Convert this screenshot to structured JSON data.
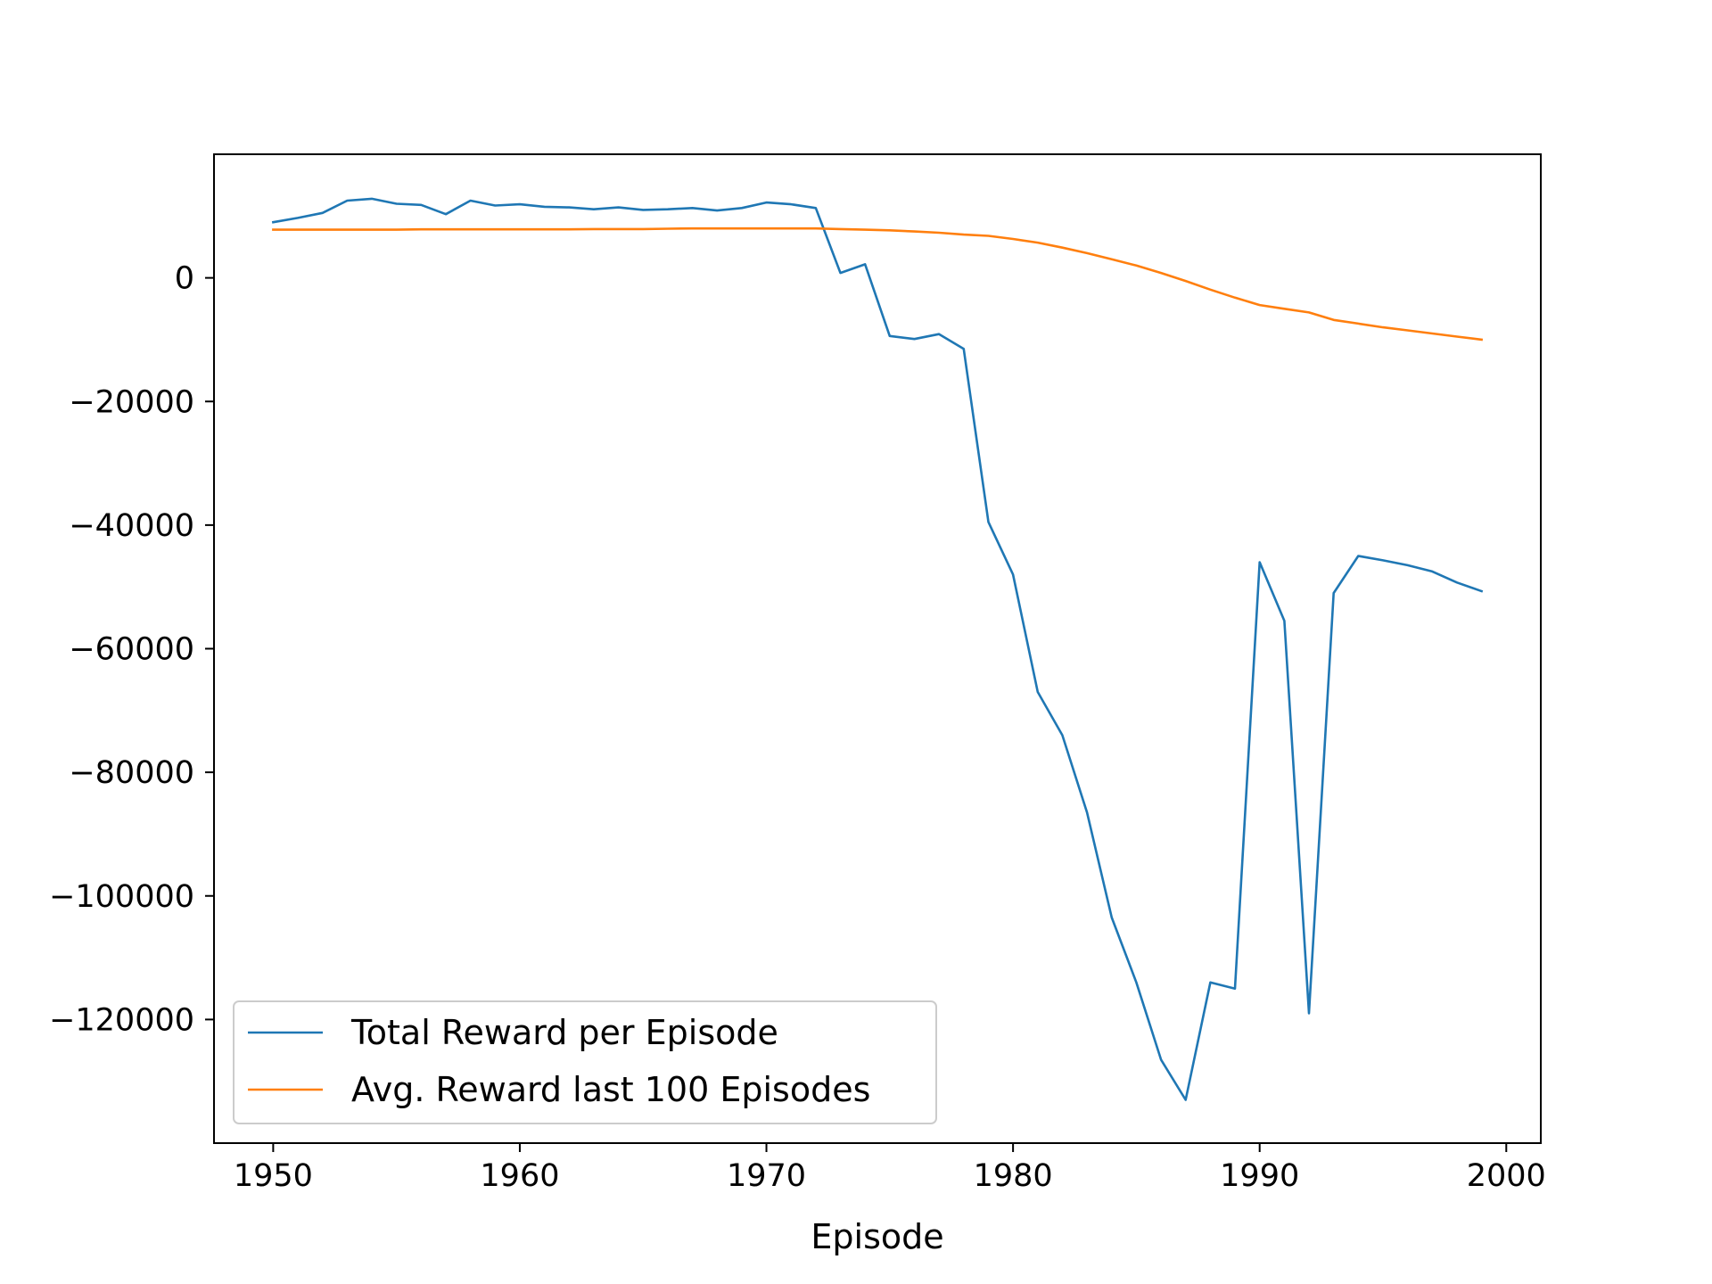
{
  "chart_data": {
    "type": "line",
    "title": "",
    "xlabel": "Episode",
    "ylabel": "",
    "xlim": [
      1947.6,
      2001.4
    ],
    "ylim": [
      -140000,
      20000
    ],
    "x_ticks": [
      1950,
      1960,
      1970,
      1980,
      1990,
      2000
    ],
    "y_ticks": [
      0,
      -20000,
      -40000,
      -60000,
      -80000,
      -100000,
      -120000
    ],
    "x_tick_labels": [
      "1950",
      "1960",
      "1970",
      "1980",
      "1990",
      "2000"
    ],
    "y_tick_labels": [
      "0",
      "−20000",
      "−40000",
      "−60000",
      "−80000",
      "−100000",
      "−120000"
    ],
    "grid": false,
    "legend_position": "lower-left",
    "x": [
      1950,
      1951,
      1952,
      1953,
      1954,
      1955,
      1956,
      1957,
      1958,
      1959,
      1960,
      1961,
      1962,
      1963,
      1964,
      1965,
      1966,
      1967,
      1968,
      1969,
      1970,
      1971,
      1972,
      1973,
      1974,
      1975,
      1976,
      1977,
      1978,
      1979,
      1980,
      1981,
      1982,
      1983,
      1984,
      1985,
      1986,
      1987,
      1988,
      1989,
      1990,
      1991,
      1992,
      1993,
      1994,
      1995,
      1996,
      1997,
      1998,
      1999
    ],
    "series": [
      {
        "name": "Total Reward per Episode",
        "color": "#1f77b4",
        "values": [
          9000,
          9700,
          10500,
          12500,
          12800,
          12000,
          11800,
          10300,
          12500,
          11700,
          11900,
          11500,
          11400,
          11100,
          11400,
          11000,
          11100,
          11300,
          10900,
          11300,
          12200,
          11900,
          11300,
          800,
          2200,
          -9400,
          -9900,
          -9100,
          -11500,
          -39500,
          -48000,
          -67000,
          -74000,
          -86500,
          -103500,
          -114000,
          -126500,
          -133000,
          -114000,
          -115000,
          -46000,
          -55500,
          -119000,
          -51000,
          -45000,
          -45700,
          -46500,
          -47500,
          -49300,
          -50700
        ]
      },
      {
        "name": "Avg. Reward last 100 Episodes",
        "color": "#ff7f0e",
        "values": [
          7800,
          7800,
          7800,
          7800,
          7800,
          7800,
          7850,
          7850,
          7850,
          7850,
          7850,
          7850,
          7850,
          7900,
          7900,
          7900,
          7950,
          8000,
          8000,
          8000,
          8000,
          8000,
          8000,
          7900,
          7800,
          7700,
          7500,
          7300,
          7000,
          6800,
          6300,
          5700,
          4900,
          4000,
          3000,
          2000,
          800,
          -500,
          -1900,
          -3200,
          -4400,
          -5000,
          -5600,
          -6800,
          -7400,
          -8000,
          -8500,
          -9000,
          -9500,
          -10000
        ]
      }
    ]
  }
}
